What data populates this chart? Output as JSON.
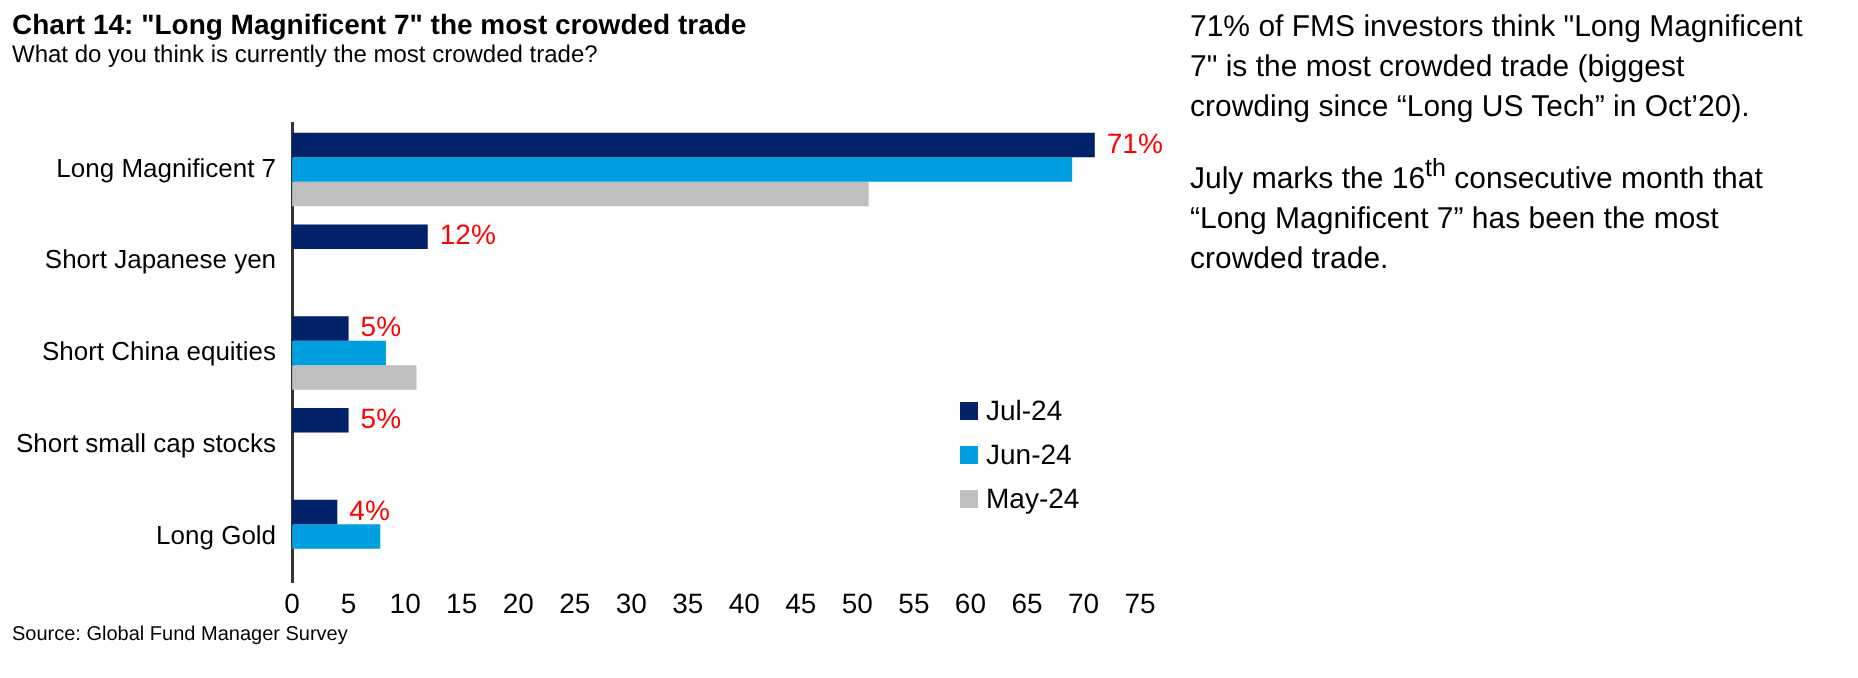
{
  "chart_data": {
    "type": "bar",
    "orientation": "horizontal",
    "title": "Chart 14: \"Long Magnificent 7\" the most crowded trade",
    "subtitle": "What do you think is currently the most crowded trade?",
    "categories": [
      "Long Magnificent 7",
      "Short Japanese yen",
      "Short China equities",
      "Short small cap stocks",
      "Long Gold"
    ],
    "series": [
      {
        "name": "Jul-24",
        "color": "#012169",
        "values": [
          71,
          12,
          5,
          5,
          4
        ],
        "value_labels": [
          "71%",
          "12%",
          "5%",
          "5%",
          "4%"
        ]
      },
      {
        "name": "Jun-24",
        "color": "#009fdf",
        "values": [
          69,
          null,
          8.3,
          null,
          7.8
        ]
      },
      {
        "name": "May-24",
        "color": "#bfbfbf",
        "values": [
          51,
          null,
          11,
          null,
          null
        ]
      }
    ],
    "xlim": [
      0,
      75
    ],
    "xticks": [
      0,
      5,
      10,
      15,
      20,
      25,
      30,
      35,
      40,
      45,
      50,
      55,
      60,
      65,
      70,
      75
    ],
    "grid": false,
    "legend": "bottom right",
    "annotations": [
      "71% of FMS investors think \"Long Magnificent 7\" is the most crowded trade (biggest crowding since “Long US Tech” in Oct’20).",
      "July marks the 16$^{th}$ consecutive month that “Long Magnificent 7” has been the most crowded trade.",
      "Source: Global Fund Manager Survey"
    ]
  }
}
